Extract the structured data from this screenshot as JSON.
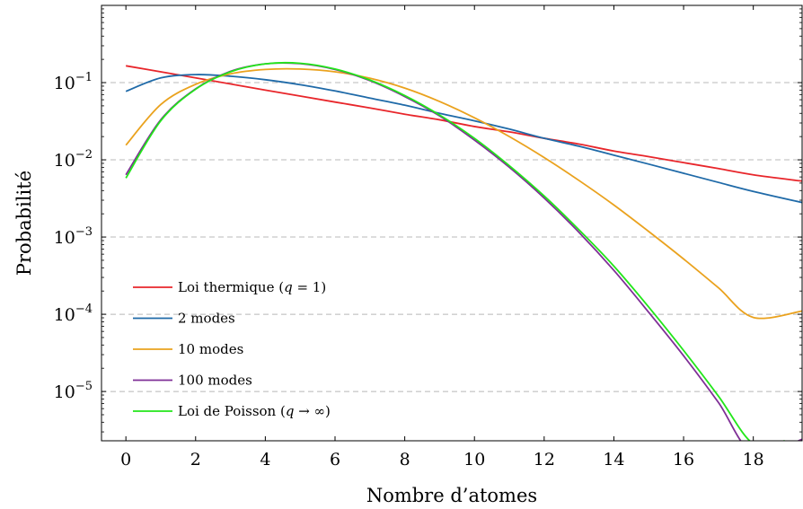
{
  "chart_data": {
    "type": "line",
    "title": "",
    "xlabel": "Nombre d’atomes",
    "ylabel": "Probabilité",
    "xscale": "linear",
    "yscale": "log",
    "xlim": [
      -0.7,
      19.4
    ],
    "ylim": [
      2.3e-06,
      1.0
    ],
    "xticks": [
      "0",
      "2",
      "4",
      "6",
      "8",
      "10",
      "12",
      "14",
      "16",
      "18"
    ],
    "yticks": [
      {
        "base": "10",
        "exp": "−1",
        "value": 0.1
      },
      {
        "base": "10",
        "exp": "−2",
        "value": 0.01
      },
      {
        "base": "10",
        "exp": "−3",
        "value": 0.001
      },
      {
        "base": "10",
        "exp": "−4",
        "value": 0.0001
      },
      {
        "base": "10",
        "exp": "−5",
        "value": 1e-05
      }
    ],
    "grid": "horizontal dashed at y ticks",
    "legend_position": "bottom-left",
    "series": [
      {
        "name": "Loi thermique (q = 1)",
        "legend_main": "Loi thermique (",
        "legend_var": "q",
        "legend_op": " = 1)",
        "color": "#e8262b",
        "x": [
          0,
          1,
          2,
          3,
          4,
          5,
          6,
          7,
          8,
          9,
          10,
          11,
          12,
          13,
          14,
          15,
          16,
          17,
          18,
          19.4
        ],
        "y": [
          0.165,
          0.138,
          0.115,
          0.096,
          0.08,
          0.067,
          0.056,
          0.047,
          0.039,
          0.033,
          0.027,
          0.023,
          0.019,
          0.016,
          0.013,
          0.011,
          0.0092,
          0.0077,
          0.0064,
          0.0053
        ]
      },
      {
        "name": "2 modes",
        "legend_main": "2 modes",
        "color": "#1f6aa8",
        "x": [
          0,
          1,
          2,
          3,
          4,
          5,
          6,
          7,
          8,
          9,
          10,
          11,
          12,
          13,
          14,
          15,
          16,
          17,
          18,
          19.4
        ],
        "y": [
          0.077,
          0.115,
          0.127,
          0.121,
          0.109,
          0.094,
          0.078,
          0.063,
          0.051,
          0.04,
          0.032,
          0.025,
          0.019,
          0.015,
          0.0115,
          0.0088,
          0.0067,
          0.0051,
          0.0039,
          0.0028
        ]
      },
      {
        "name": "10 modes",
        "legend_main": "10 modes",
        "color": "#eaa21e",
        "x": [
          0,
          1,
          2,
          3,
          4,
          5,
          6,
          7,
          8,
          9,
          10,
          11,
          12,
          13,
          14,
          15,
          16,
          17,
          18,
          19.4
        ],
        "y": [
          0.0155,
          0.052,
          0.095,
          0.13,
          0.148,
          0.15,
          0.138,
          0.114,
          0.085,
          0.057,
          0.035,
          0.02,
          0.0107,
          0.0054,
          0.0026,
          0.00118,
          0.00052,
          0.00022,
          9.1e-05,
          0.00011
        ]
      },
      {
        "name": "100 modes",
        "legend_main": "100 modes",
        "color": "#7f2f96",
        "x": [
          0,
          1,
          2,
          3,
          4,
          5,
          6,
          7,
          8,
          9,
          10,
          11,
          12,
          13,
          14,
          15,
          16,
          17,
          18,
          19.4
        ],
        "y": [
          0.0064,
          0.033,
          0.083,
          0.14,
          0.175,
          0.176,
          0.148,
          0.106,
          0.066,
          0.037,
          0.018,
          0.008,
          0.0032,
          0.00115,
          0.00037,
          0.000106,
          2.9e-05,
          7.2e-06,
          1.6e-06,
          2.4e-06
        ]
      },
      {
        "name": "Loi de Poisson (q → ∞)",
        "legend_main": "Loi de Poisson (",
        "legend_var": "q",
        "legend_op": " → ∞)",
        "color": "#22e61a",
        "x": [
          0,
          1,
          2,
          3,
          4,
          5,
          6,
          7,
          8,
          9,
          10,
          11,
          12,
          13,
          14,
          15,
          16,
          17,
          18,
          18.9
        ],
        "y": [
          0.0058,
          0.032,
          0.082,
          0.138,
          0.175,
          0.178,
          0.15,
          0.108,
          0.068,
          0.038,
          0.019,
          0.0084,
          0.0034,
          0.00124,
          0.00042,
          0.000124,
          3.4e-05,
          8.7e-06,
          2.1e-06,
          2.3e-06
        ]
      }
    ]
  }
}
